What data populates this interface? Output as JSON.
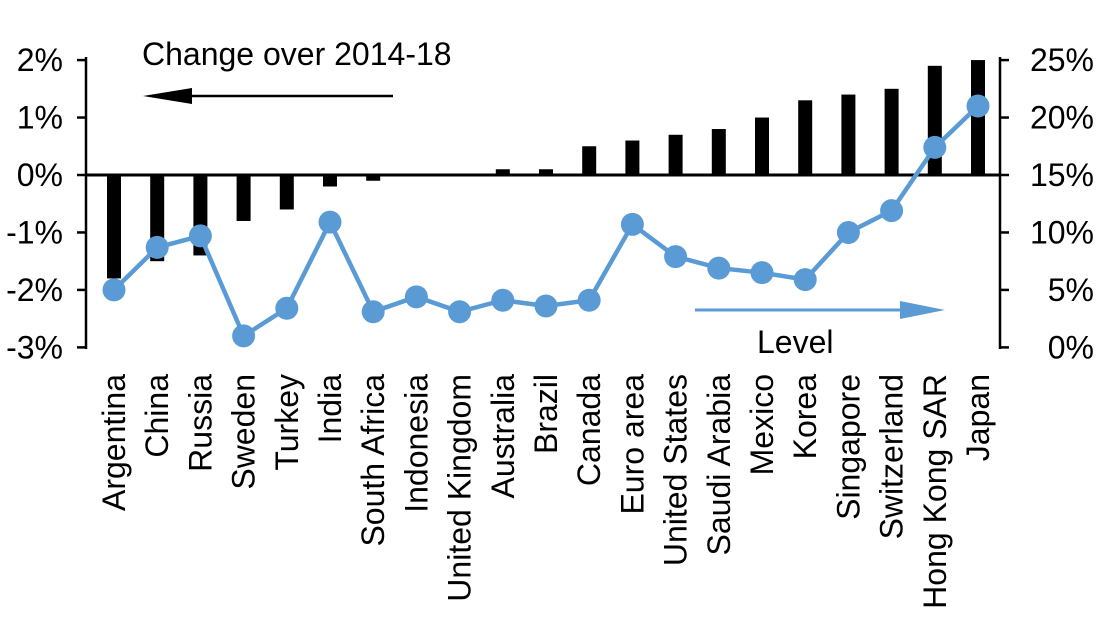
{
  "chart_data": {
    "type": "combo-bar-line-dual-axis",
    "title": "Change over 2014-18",
    "categories": [
      "Argentina",
      "China",
      "Russia",
      "Sweden",
      "Turkey",
      "India",
      "South Africa",
      "Indonesia",
      "United Kingdom",
      "Australia",
      "Brazil",
      "Canada",
      "Euro area",
      "United States",
      "Saudi Arabia",
      "Mexico",
      "Korea",
      "Singapore",
      "Switzerland",
      "Hong Kong SAR",
      "Japan"
    ],
    "series": [
      {
        "name": "Change over 2014-18",
        "type": "bar",
        "axis": "left",
        "color": "#000000",
        "values": [
          -1.8,
          -1.5,
          -1.4,
          -0.8,
          -0.6,
          -0.2,
          -0.1,
          0,
          0,
          0.1,
          0.1,
          0.5,
          0.6,
          0.7,
          0.8,
          1.0,
          1.3,
          1.4,
          1.5,
          1.9,
          2.0
        ]
      },
      {
        "name": "Level",
        "type": "line",
        "axis": "right",
        "color": "#5B9BD5",
        "values": [
          5.0,
          8.7,
          9.7,
          1.0,
          3.4,
          10.9,
          3.1,
          4.4,
          3.1,
          4.1,
          3.6,
          4.1,
          10.7,
          7.9,
          6.9,
          6.5,
          5.9,
          10.0,
          11.9,
          17.4,
          21.0
        ]
      }
    ],
    "left_axis": {
      "min": -3,
      "max": 2,
      "unit": "%",
      "tick_values": [
        2,
        1,
        0,
        -1,
        -2,
        -3
      ],
      "tick_labels": [
        "2%",
        "1%",
        "0%",
        "-1%",
        "-2%",
        "-3%"
      ]
    },
    "right_axis": {
      "min": 0,
      "max": 25,
      "unit": "%",
      "tick_values": [
        25,
        20,
        15,
        10,
        5,
        0
      ],
      "tick_labels": [
        "25%",
        "20%",
        "15%",
        "10%",
        "5%",
        "0%"
      ]
    },
    "annotations": [
      {
        "text": "Change over 2014-18",
        "arrow": "left",
        "color": "#000000"
      },
      {
        "text": "Level",
        "arrow": "right",
        "color": "#5B9BD5"
      }
    ],
    "grid": false,
    "legend_position": "none (in-plot arrow annotations)"
  },
  "colors": {
    "background": "#FFFFFF",
    "bar": "#000000",
    "line": "#5B9BD5",
    "text": "#000000"
  }
}
